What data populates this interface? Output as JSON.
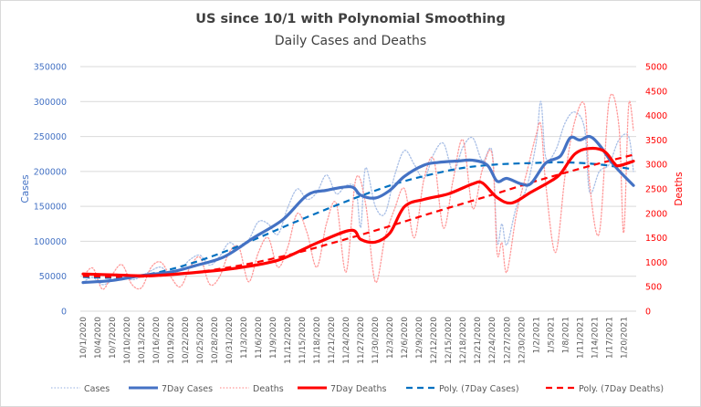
{
  "chart_data": {
    "type": "line",
    "title": "US since 10/1 with Polynomial Smoothing",
    "subtitle": "Daily Cases and Deaths",
    "ylabel": "Cases",
    "y2label": "Deaths",
    "ylim": [
      0,
      350000
    ],
    "y2lim": [
      0,
      5000
    ],
    "yticks": [
      "0",
      "50000",
      "100000",
      "150000",
      "200000",
      "250000",
      "300000",
      "350000"
    ],
    "y2ticks": [
      "0",
      "500",
      "1000",
      "1500",
      "2000",
      "2500",
      "3000",
      "3500",
      "4000",
      "4500",
      "5000"
    ],
    "grid": true,
    "legend_position": "bottom",
    "x_start": "10/1/2020",
    "x_days": 114,
    "xtick_labels": [
      "10/1/2020",
      "10/4/2020",
      "10/7/2020",
      "10/10/2020",
      "10/13/2020",
      "10/16/2020",
      "10/19/2020",
      "10/22/2020",
      "10/25/2020",
      "10/28/2020",
      "10/31/2020",
      "11/3/2020",
      "11/6/2020",
      "11/9/2020",
      "11/12/2020",
      "11/15/2020",
      "11/18/2020",
      "11/21/2020",
      "11/24/2020",
      "11/27/2020",
      "11/30/2020",
      "12/3/2020",
      "12/6/2020",
      "12/9/2020",
      "12/12/2020",
      "12/15/2020",
      "12/18/2020",
      "12/21/2020",
      "12/24/2020",
      "12/27/2020",
      "12/30/2020",
      "1/2/2021",
      "1/5/2021",
      "1/8/2021",
      "1/11/2021",
      "1/14/2021",
      "1/17/2021",
      "1/20/2021"
    ],
    "series": [
      {
        "name": "Cases",
        "axis": "left",
        "style": "dotted",
        "color": "#a9bfe6",
        "points": [
          [
            0,
            42000
          ],
          [
            2,
            48000
          ],
          [
            4,
            38000
          ],
          [
            6,
            44000
          ],
          [
            8,
            52000
          ],
          [
            10,
            45000
          ],
          [
            12,
            50000
          ],
          [
            14,
            58000
          ],
          [
            16,
            63000
          ],
          [
            18,
            52000
          ],
          [
            20,
            60000
          ],
          [
            22,
            74000
          ],
          [
            24,
            80000
          ],
          [
            26,
            66000
          ],
          [
            28,
            78000
          ],
          [
            30,
            98000
          ],
          [
            32,
            90000
          ],
          [
            34,
            102000
          ],
          [
            36,
            128000
          ],
          [
            38,
            125000
          ],
          [
            40,
            110000
          ],
          [
            42,
            148000
          ],
          [
            44,
            175000
          ],
          [
            46,
            160000
          ],
          [
            48,
            170000
          ],
          [
            50,
            195000
          ],
          [
            52,
            168000
          ],
          [
            54,
            180000
          ],
          [
            56,
            175000
          ],
          [
            57,
            120000
          ],
          [
            58,
            205000
          ],
          [
            60,
            150000
          ],
          [
            62,
            140000
          ],
          [
            64,
            195000
          ],
          [
            66,
            230000
          ],
          [
            68,
            210000
          ],
          [
            70,
            190000
          ],
          [
            72,
            225000
          ],
          [
            74,
            240000
          ],
          [
            76,
            200000
          ],
          [
            78,
            235000
          ],
          [
            80,
            248000
          ],
          [
            82,
            215000
          ],
          [
            84,
            228000
          ],
          [
            85,
            100000
          ],
          [
            86,
            125000
          ],
          [
            87,
            95000
          ],
          [
            89,
            150000
          ],
          [
            91,
            175000
          ],
          [
            93,
            240000
          ],
          [
            94,
            300000
          ],
          [
            95,
            220000
          ],
          [
            97,
            230000
          ],
          [
            99,
            270000
          ],
          [
            101,
            285000
          ],
          [
            103,
            260000
          ],
          [
            104,
            170000
          ],
          [
            106,
            200000
          ],
          [
            108,
            210000
          ],
          [
            110,
            245000
          ],
          [
            112,
            250000
          ],
          [
            113,
            200000
          ]
        ]
      },
      {
        "name": "7Day Cases",
        "axis": "left",
        "style": "solid",
        "color": "#4472c4",
        "points": [
          [
            0,
            41000
          ],
          [
            6,
            44000
          ],
          [
            12,
            51000
          ],
          [
            18,
            56000
          ],
          [
            23,
            65000
          ],
          [
            29,
            78000
          ],
          [
            35,
            105000
          ],
          [
            41,
            131000
          ],
          [
            46,
            166000
          ],
          [
            50,
            173000
          ],
          [
            55,
            178000
          ],
          [
            57,
            166000
          ],
          [
            60,
            162000
          ],
          [
            63,
            173000
          ],
          [
            66,
            193000
          ],
          [
            70,
            209000
          ],
          [
            73,
            213000
          ],
          [
            77,
            215000
          ],
          [
            80,
            216000
          ],
          [
            83,
            209000
          ],
          [
            85,
            186000
          ],
          [
            87,
            190000
          ],
          [
            90,
            182000
          ],
          [
            92,
            183000
          ],
          [
            95,
            212000
          ],
          [
            98,
            222000
          ],
          [
            100,
            248000
          ],
          [
            102,
            245000
          ],
          [
            104,
            250000
          ],
          [
            106,
            238000
          ],
          [
            109,
            209000
          ],
          [
            113,
            180000
          ]
        ]
      },
      {
        "name": "Deaths",
        "axis": "right",
        "style": "dotted",
        "color": "#ff9999",
        "points": [
          [
            0,
            700
          ],
          [
            2,
            880
          ],
          [
            4,
            450
          ],
          [
            6,
            750
          ],
          [
            8,
            950
          ],
          [
            10,
            550
          ],
          [
            12,
            480
          ],
          [
            14,
            900
          ],
          [
            16,
            1000
          ],
          [
            18,
            700
          ],
          [
            20,
            500
          ],
          [
            22,
            900
          ],
          [
            24,
            1100
          ],
          [
            26,
            550
          ],
          [
            28,
            700
          ],
          [
            30,
            1200
          ],
          [
            32,
            1300
          ],
          [
            34,
            600
          ],
          [
            36,
            1200
          ],
          [
            38,
            1500
          ],
          [
            40,
            900
          ],
          [
            42,
            1300
          ],
          [
            44,
            2000
          ],
          [
            46,
            1600
          ],
          [
            48,
            900
          ],
          [
            50,
            1800
          ],
          [
            52,
            2200
          ],
          [
            54,
            800
          ],
          [
            56,
            2700
          ],
          [
            58,
            2200
          ],
          [
            60,
            600
          ],
          [
            62,
            1500
          ],
          [
            64,
            2100
          ],
          [
            66,
            2500
          ],
          [
            68,
            1500
          ],
          [
            70,
            2700
          ],
          [
            72,
            3100
          ],
          [
            74,
            1700
          ],
          [
            76,
            2700
          ],
          [
            78,
            3500
          ],
          [
            80,
            2100
          ],
          [
            82,
            2900
          ],
          [
            84,
            3200
          ],
          [
            85,
            1200
          ],
          [
            86,
            1400
          ],
          [
            87,
            800
          ],
          [
            89,
            2000
          ],
          [
            91,
            2800
          ],
          [
            93,
            3600
          ],
          [
            94,
            3800
          ],
          [
            95,
            2600
          ],
          [
            97,
            1200
          ],
          [
            99,
            2800
          ],
          [
            101,
            3900
          ],
          [
            103,
            4200
          ],
          [
            104,
            2600
          ],
          [
            106,
            1600
          ],
          [
            108,
            4300
          ],
          [
            110,
            3800
          ],
          [
            111,
            1600
          ],
          [
            112,
            4200
          ],
          [
            113,
            3700
          ]
        ]
      },
      {
        "name": "7Day Deaths",
        "axis": "right",
        "style": "solid",
        "color": "#ff0000",
        "points": [
          [
            0,
            762
          ],
          [
            7,
            740
          ],
          [
            14,
            725
          ],
          [
            24,
            800
          ],
          [
            31,
            874
          ],
          [
            40,
            1041
          ],
          [
            48,
            1394
          ],
          [
            55,
            1654
          ],
          [
            57,
            1468
          ],
          [
            60,
            1413
          ],
          [
            63,
            1599
          ],
          [
            66,
            2138
          ],
          [
            70,
            2286
          ],
          [
            75,
            2398
          ],
          [
            80,
            2602
          ],
          [
            82,
            2621
          ],
          [
            85,
            2323
          ],
          [
            88,
            2212
          ],
          [
            92,
            2435
          ],
          [
            96,
            2658
          ],
          [
            98,
            2807
          ],
          [
            101,
            3216
          ],
          [
            104,
            3327
          ],
          [
            107,
            3271
          ],
          [
            109,
            3030
          ],
          [
            110,
            2974
          ],
          [
            113,
            3067
          ]
        ]
      },
      {
        "name": "Poly. (7Day Cases)",
        "axis": "left",
        "style": "dashed",
        "color": "#0070c0",
        "points": [
          [
            0,
            49000
          ],
          [
            8,
            48000
          ],
          [
            15,
            55000
          ],
          [
            22,
            68000
          ],
          [
            29,
            85000
          ],
          [
            36,
            105000
          ],
          [
            43,
            126000
          ],
          [
            50,
            146000
          ],
          [
            57,
            165000
          ],
          [
            64,
            182000
          ],
          [
            71,
            195000
          ],
          [
            78,
            205000
          ],
          [
            85,
            210000
          ],
          [
            92,
            212000
          ],
          [
            99,
            213000
          ],
          [
            106,
            210000
          ],
          [
            113,
            203000
          ]
        ]
      },
      {
        "name": "Poly. (7Day Deaths)",
        "axis": "right",
        "style": "dashed",
        "color": "#ff0000",
        "points": [
          [
            0,
            720
          ],
          [
            8,
            700
          ],
          [
            15,
            720
          ],
          [
            22,
            780
          ],
          [
            29,
            880
          ],
          [
            36,
            1010
          ],
          [
            43,
            1170
          ],
          [
            50,
            1360
          ],
          [
            57,
            1560
          ],
          [
            64,
            1770
          ],
          [
            71,
            1990
          ],
          [
            78,
            2200
          ],
          [
            85,
            2410
          ],
          [
            92,
            2630
          ],
          [
            99,
            2830
          ],
          [
            106,
            3020
          ],
          [
            113,
            3200
          ]
        ]
      }
    ]
  },
  "legend": [
    {
      "label": "Cases"
    },
    {
      "label": "7Day Cases"
    },
    {
      "label": "Deaths"
    },
    {
      "label": "7Day Deaths"
    },
    {
      "label": "Poly. (7Day Cases)"
    },
    {
      "label": "Poly. (7Day Deaths)"
    }
  ]
}
